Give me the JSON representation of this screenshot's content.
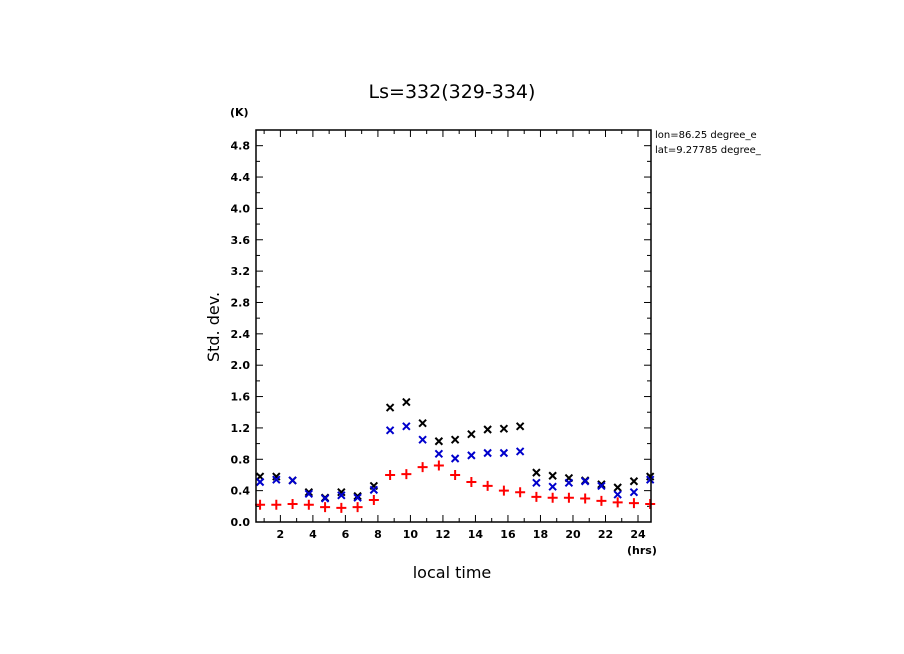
{
  "chart_data": {
    "type": "scatter",
    "title": "Ls=332(329-334)",
    "xlabel": "local time",
    "ylabel": "Std. dev.",
    "x_unit": "(hrs)",
    "y_unit": "(K)",
    "annotations": [
      "lon=86.25 degree_e",
      "lat=9.27785 degree_"
    ],
    "xlim": [
      0.5,
      24.8
    ],
    "ylim": [
      0.0,
      5.0
    ],
    "x_ticks": [
      "2",
      "4",
      "6",
      "8",
      "10",
      "12",
      "14",
      "16",
      "18",
      "20",
      "22",
      "24"
    ],
    "y_ticks": [
      "0.0",
      "0.4",
      "0.8",
      "1.2",
      "1.6",
      "2.0",
      "2.4",
      "2.8",
      "3.2",
      "3.6",
      "4.0",
      "4.4",
      "4.8"
    ],
    "x": [
      0.75,
      1.75,
      2.75,
      3.75,
      4.75,
      5.75,
      6.75,
      7.75,
      8.75,
      9.75,
      10.75,
      11.75,
      12.75,
      13.75,
      14.75,
      15.75,
      16.75,
      17.75,
      18.75,
      19.75,
      20.75,
      21.75,
      22.75,
      23.75,
      24.75
    ],
    "series": [
      {
        "marker": "x",
        "color": "#000000",
        "values": [
          0.58,
          0.58,
          0.53,
          0.38,
          0.31,
          0.38,
          0.33,
          0.46,
          1.46,
          1.53,
          1.26,
          1.03,
          1.05,
          1.12,
          1.18,
          1.19,
          1.22,
          0.63,
          0.59,
          0.56,
          0.53,
          0.48,
          0.44,
          0.52,
          0.58
        ]
      },
      {
        "marker": "x",
        "color": "#0000cc",
        "values": [
          0.51,
          0.54,
          0.53,
          0.36,
          0.3,
          0.34,
          0.31,
          0.41,
          1.17,
          1.22,
          1.05,
          0.87,
          0.81,
          0.85,
          0.88,
          0.88,
          0.9,
          0.5,
          0.45,
          0.5,
          0.52,
          0.46,
          0.35,
          0.38,
          0.54
        ]
      },
      {
        "marker": "+",
        "color": "#ff0000",
        "values": [
          0.22,
          0.22,
          0.23,
          0.22,
          0.19,
          0.18,
          0.19,
          0.28,
          0.6,
          0.61,
          0.7,
          0.72,
          0.6,
          0.51,
          0.46,
          0.4,
          0.38,
          0.32,
          0.31,
          0.31,
          0.3,
          0.27,
          0.25,
          0.24,
          0.23
        ]
      }
    ]
  }
}
